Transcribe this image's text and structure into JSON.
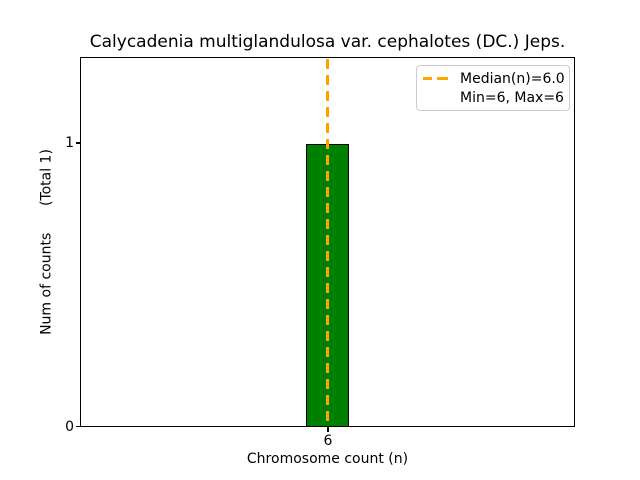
{
  "chart_data": {
    "type": "bar",
    "title": "Calycadenia multiglandulosa var. cephalotes (DC.) Jeps.",
    "xlabel": "Chromosome count (n)",
    "ylabel": "Num of counts      (Total 1)",
    "categories": [
      6
    ],
    "values": [
      1
    ],
    "total_counts": 1,
    "xticks": [
      "6"
    ],
    "yticks": [
      "0",
      "1"
    ],
    "ylim": [
      0,
      1.3
    ],
    "xlim_note": "single bar centered in axis",
    "grid": false,
    "bar_color": "#008000",
    "bar_edge_color": "#000000",
    "median_line": {
      "value": 6.0,
      "color": "#ffa500",
      "style": "dashed",
      "orientation": "vertical"
    },
    "legend": {
      "position": "upper right",
      "entries": [
        {
          "label": "Median(n)=6.0",
          "marker": "orange-dashed-line"
        },
        {
          "label": "Min=6, Max=6",
          "marker": "none"
        }
      ]
    },
    "stats": {
      "median": 6.0,
      "min": 6,
      "max": 6
    }
  }
}
